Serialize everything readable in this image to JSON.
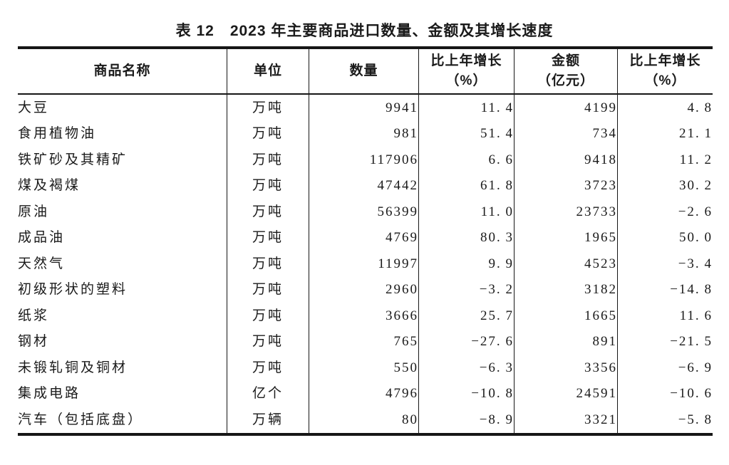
{
  "title": {
    "label": "表 12",
    "text": "2023 年主要商品进口数量、金额及其增长速度"
  },
  "colors": {
    "text": "#1a1a1a",
    "rule": "#161616",
    "background": "#ffffff"
  },
  "table": {
    "columns": [
      {
        "key": "name",
        "label": "商品名称",
        "sub": ""
      },
      {
        "key": "unit",
        "label": "单位",
        "sub": ""
      },
      {
        "key": "quantity",
        "label": "数量",
        "sub": ""
      },
      {
        "key": "qty-growth",
        "label": "比上年增长",
        "sub": "（%）"
      },
      {
        "key": "amount",
        "label": "金额",
        "sub": "（亿元）"
      },
      {
        "key": "amt-growth",
        "label": "比上年增长",
        "sub": "（%）"
      }
    ],
    "rows": [
      [
        "大豆",
        "万吨",
        "9941",
        "11.4",
        "4199",
        "4.8"
      ],
      [
        "食用植物油",
        "万吨",
        "981",
        "51.4",
        "734",
        "21.1"
      ],
      [
        "铁矿砂及其精矿",
        "万吨",
        "117906",
        "6.6",
        "9418",
        "11.2"
      ],
      [
        "煤及褐煤",
        "万吨",
        "47442",
        "61.8",
        "3723",
        "30.2"
      ],
      [
        "原油",
        "万吨",
        "56399",
        "11.0",
        "23733",
        "-2.6"
      ],
      [
        "成品油",
        "万吨",
        "4769",
        "80.3",
        "1965",
        "50.0"
      ],
      [
        "天然气",
        "万吨",
        "11997",
        "9.9",
        "4523",
        "-3.4"
      ],
      [
        "初级形状的塑料",
        "万吨",
        "2960",
        "-3.2",
        "3182",
        "-14.8"
      ],
      [
        "纸浆",
        "万吨",
        "3666",
        "25.7",
        "1665",
        "11.6"
      ],
      [
        "钢材",
        "万吨",
        "765",
        "-27.6",
        "891",
        "-21.5"
      ],
      [
        "未锻轧铜及铜材",
        "万吨",
        "550",
        "-6.3",
        "3356",
        "-6.9"
      ],
      [
        "集成电路",
        "亿个",
        "4796",
        "-10.8",
        "24591",
        "-10.6"
      ],
      [
        "汽车（包括底盘）",
        "万辆",
        "80",
        "-8.9",
        "3321",
        "-5.8"
      ]
    ]
  }
}
